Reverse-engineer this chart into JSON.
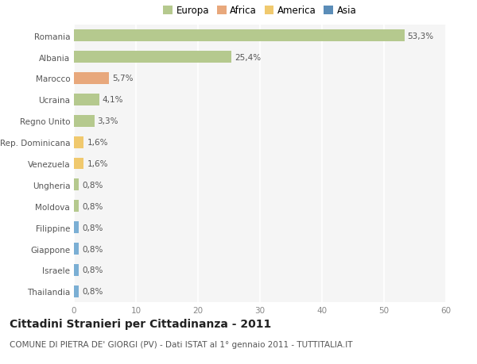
{
  "categories": [
    "Romania",
    "Albania",
    "Marocco",
    "Ucraina",
    "Regno Unito",
    "Rep. Dominicana",
    "Venezuela",
    "Ungheria",
    "Moldova",
    "Filippine",
    "Giappone",
    "Israele",
    "Thailandia"
  ],
  "values": [
    53.3,
    25.4,
    5.7,
    4.1,
    3.3,
    1.6,
    1.6,
    0.8,
    0.8,
    0.8,
    0.8,
    0.8,
    0.8
  ],
  "labels": [
    "53,3%",
    "25,4%",
    "5,7%",
    "4,1%",
    "3,3%",
    "1,6%",
    "1,6%",
    "0,8%",
    "0,8%",
    "0,8%",
    "0,8%",
    "0,8%",
    "0,8%"
  ],
  "colors": [
    "#b5c98e",
    "#b5c98e",
    "#e8a87c",
    "#b5c98e",
    "#b5c98e",
    "#f0c96e",
    "#f0c96e",
    "#b5c98e",
    "#b5c98e",
    "#7bafd4",
    "#7bafd4",
    "#7bafd4",
    "#7bafd4"
  ],
  "legend_labels": [
    "Europa",
    "Africa",
    "America",
    "Asia"
  ],
  "legend_colors": [
    "#b5c98e",
    "#e8a87c",
    "#f0c96e",
    "#5b8db8"
  ],
  "title": "Cittadini Stranieri per Cittadinanza - 2011",
  "subtitle": "COMUNE DI PIETRA DE' GIORGI (PV) - Dati ISTAT al 1° gennaio 2011 - TUTTITALIA.IT",
  "xlim": [
    0,
    60
  ],
  "xticks": [
    0,
    10,
    20,
    30,
    40,
    50,
    60
  ],
  "bg_color": "#ffffff",
  "plot_bg_color": "#f5f5f5",
  "grid_color": "#ffffff",
  "title_fontsize": 10,
  "subtitle_fontsize": 7.5,
  "tick_fontsize": 7.5,
  "label_fontsize": 7.5,
  "legend_fontsize": 8.5
}
